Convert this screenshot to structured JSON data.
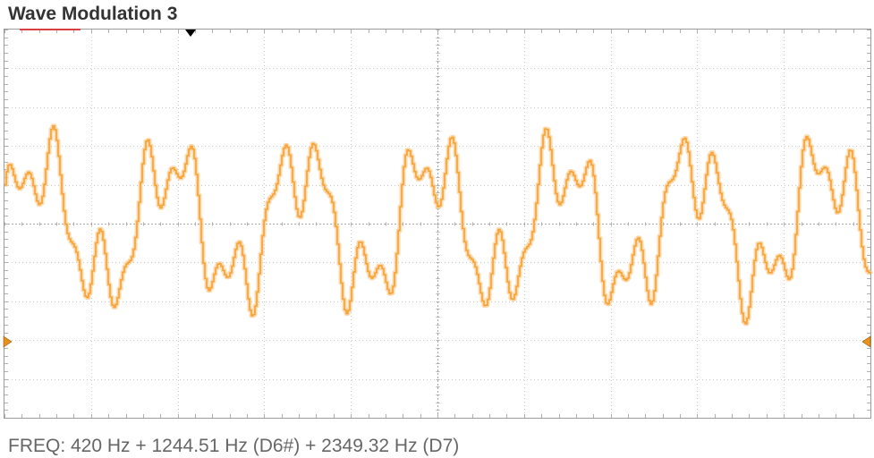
{
  "title": "Wave Modulation 3",
  "frequency_readout": "FREQ: 420 Hz + 1244.51 Hz (D6#) + 2349.32 Hz (D7)",
  "colors": {
    "trace": "#f5a133",
    "trace_glow": "#f9c98a",
    "grid_major": "#c8c8c8",
    "grid_minor": "#b0b0b0",
    "marker": "#e8921a",
    "trigger_marker": "#000000",
    "channel_indicator": "#d84040",
    "frame": "#9a9a9a"
  },
  "waveform": {
    "components_hz": [
      420,
      1244.51,
      2349.32
    ],
    "amplitudes": [
      1,
      0.55,
      0.35
    ],
    "cycles_of_fundamental_shown": 6.6
  },
  "icons": {
    "trigger": "trigger-position-marker-icon",
    "level_left": "level-marker-left-icon",
    "level_right": "level-marker-right-icon"
  }
}
